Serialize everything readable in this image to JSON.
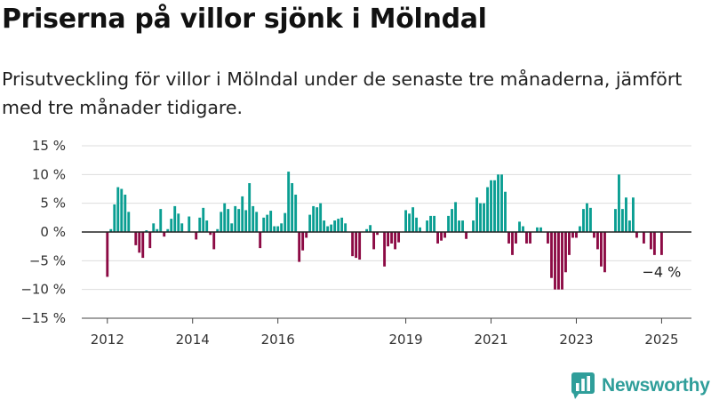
{
  "title": "Priserna på villor sjönk i Mölndal",
  "subtitle": "Prisutveckling för villor i Mölndal under de senaste tre månaderna, jämfört med tre månader tidigare.",
  "brand": {
    "name": "Newsworthy",
    "icon": "bar-chart-logo-icon"
  },
  "colors": {
    "positive": "#0a9e92",
    "negative": "#8c0a44",
    "brand": "#2f9e9a"
  },
  "chart_data": {
    "type": "bar",
    "ylabel": "",
    "ylim": [
      -15,
      15
    ],
    "yticks": [
      15,
      10,
      5,
      0,
      -5,
      -10,
      -15
    ],
    "ytick_labels": [
      "15 %",
      "10 %",
      "5 %",
      "0 %",
      "−5 %",
      "−10 %",
      "−15 %"
    ],
    "xlim": [
      2011.4,
      2025.7
    ],
    "xticks": [
      2012,
      2014,
      2016,
      2019,
      2021,
      2023,
      2025
    ],
    "xtick_labels": [
      "2012",
      "2014",
      "2016",
      "2019",
      "2021",
      "2023",
      "2025"
    ],
    "grid": true,
    "annotation": {
      "text": "−4 %",
      "x": 2025.0,
      "y": -4
    },
    "x": [
      2012.0,
      2012.083,
      2012.167,
      2012.25,
      2012.333,
      2012.417,
      2012.5,
      2012.583,
      2012.667,
      2012.75,
      2012.833,
      2012.917,
      2013.0,
      2013.083,
      2013.167,
      2013.25,
      2013.333,
      2013.417,
      2013.5,
      2013.583,
      2013.667,
      2013.75,
      2013.833,
      2013.917,
      2014.0,
      2014.083,
      2014.167,
      2014.25,
      2014.333,
      2014.417,
      2014.5,
      2014.583,
      2014.667,
      2014.75,
      2014.833,
      2014.917,
      2015.0,
      2015.083,
      2015.167,
      2015.25,
      2015.333,
      2015.417,
      2015.5,
      2015.583,
      2015.667,
      2015.75,
      2015.833,
      2015.917,
      2016.0,
      2016.083,
      2016.167,
      2016.25,
      2016.333,
      2016.417,
      2016.5,
      2016.583,
      2016.667,
      2016.75,
      2016.833,
      2016.917,
      2017.0,
      2017.083,
      2017.167,
      2017.25,
      2017.333,
      2017.417,
      2017.5,
      2017.583,
      2017.667,
      2017.75,
      2017.833,
      2017.917,
      2018.0,
      2018.083,
      2018.167,
      2018.25,
      2018.333,
      2018.417,
      2018.5,
      2018.583,
      2018.667,
      2018.75,
      2018.833,
      2018.917,
      2019.0,
      2019.083,
      2019.167,
      2019.25,
      2019.333,
      2019.417,
      2019.5,
      2019.583,
      2019.667,
      2019.75,
      2019.833,
      2019.917,
      2020.0,
      2020.083,
      2020.167,
      2020.25,
      2020.333,
      2020.417,
      2020.5,
      2020.583,
      2020.667,
      2020.75,
      2020.833,
      2020.917,
      2021.0,
      2021.083,
      2021.167,
      2021.25,
      2021.333,
      2021.417,
      2021.5,
      2021.583,
      2021.667,
      2021.75,
      2021.833,
      2021.917,
      2022.0,
      2022.083,
      2022.167,
      2022.25,
      2022.333,
      2022.417,
      2022.5,
      2022.583,
      2022.667,
      2022.75,
      2022.833,
      2022.917,
      2023.0,
      2023.083,
      2023.167,
      2023.25,
      2023.333,
      2023.417,
      2023.5,
      2023.583,
      2023.667,
      2023.75,
      2023.833,
      2023.917,
      2024.0,
      2024.083,
      2024.167,
      2024.25,
      2024.333,
      2024.417,
      2024.5,
      2024.583,
      2024.667,
      2024.75,
      2024.833,
      2024.917,
      2025.0
    ],
    "values": [
      -7.8,
      0.5,
      4.8,
      7.8,
      7.5,
      6.5,
      3.5,
      0,
      -2.3,
      -3.6,
      -4.5,
      0.3,
      -2.8,
      1.5,
      0.5,
      4,
      -0.8,
      0.5,
      2.3,
      4.5,
      3.2,
      1.5,
      0,
      2.7,
      0,
      -1.3,
      2.5,
      4.2,
      2,
      -0.5,
      -3,
      0.5,
      3.5,
      5,
      4,
      1.5,
      4.5,
      4,
      6.2,
      3.8,
      8.5,
      4.5,
      3.5,
      -2.8,
      2.5,
      3,
      3.7,
      1,
      1,
      1.5,
      3.3,
      10.5,
      8.5,
      6.5,
      -5.2,
      -3.2,
      -1,
      3,
      4.5,
      4.3,
      5,
      2,
      1,
      1.3,
      2,
      2.3,
      2.5,
      1.5,
      0,
      -4.2,
      -4.5,
      -4.8,
      0,
      0.5,
      1.2,
      -3,
      -0.5,
      0,
      -6,
      -2.5,
      -2,
      -3,
      -1.8,
      0,
      3.8,
      3.2,
      4.3,
      2.5,
      0.8,
      0,
      2,
      2.8,
      2.8,
      -2,
      -1.5,
      -1,
      2.8,
      4,
      5.2,
      2,
      2,
      -1.2,
      0,
      2,
      6,
      5,
      5,
      7.8,
      9,
      9,
      10,
      10,
      7,
      -2,
      -4,
      -2,
      1.8,
      1,
      -2,
      -2,
      0,
      0.8,
      0.8,
      0,
      -2,
      -8,
      -10,
      -10,
      -10,
      -7,
      -4,
      -1,
      -1,
      1,
      4,
      5,
      4.2,
      -1,
      -3,
      -6,
      -7,
      0,
      0,
      4,
      10,
      4,
      6,
      2,
      6,
      -1,
      0,
      -2,
      0,
      -3,
      -4,
      0,
      -4
    ]
  }
}
